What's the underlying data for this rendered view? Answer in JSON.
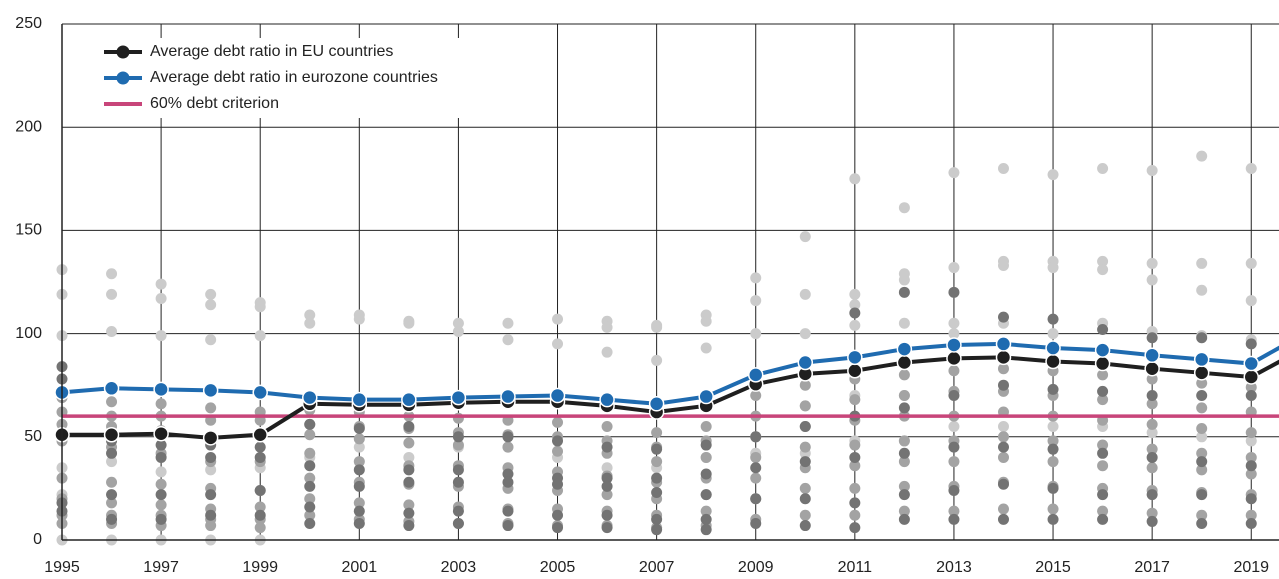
{
  "chart_data": {
    "type": "line",
    "x": [
      1995,
      1996,
      1997,
      1998,
      1999,
      2000,
      2001,
      2002,
      2003,
      2004,
      2005,
      2006,
      2007,
      2008,
      2009,
      2010,
      2011,
      2012,
      2013,
      2014,
      2015,
      2016,
      2017,
      2018,
      2019,
      2020
    ],
    "series": [
      {
        "name": "Average debt ratio in EU countries",
        "color": "#1f1f1f",
        "marker": true,
        "values": [
          51,
          51,
          51.5,
          49.5,
          51,
          66,
          65.5,
          65.5,
          66.5,
          67,
          67,
          65,
          62,
          65,
          75.5,
          80.5,
          82,
          86,
          88,
          88.5,
          86.5,
          85.5,
          83,
          81,
          79,
          92
        ]
      },
      {
        "name": "Average debt ratio in eurozone countries",
        "color": "#1f6bb0",
        "marker": true,
        "values": [
          71.5,
          73.5,
          73,
          72.5,
          71.5,
          69,
          68,
          68,
          69,
          69.5,
          70,
          68,
          66,
          69.5,
          80,
          86,
          88.5,
          92.5,
          94.5,
          95,
          93,
          92,
          89.5,
          87.5,
          85.5,
          99
        ]
      },
      {
        "name": "60% debt criterion",
        "color": "#c8457a",
        "marker": false,
        "values": [
          60,
          60,
          60,
          60,
          60,
          60,
          60,
          60,
          60,
          60,
          60,
          60,
          60,
          60,
          60,
          60,
          60,
          60,
          60,
          60,
          60,
          60,
          60,
          60,
          60,
          60
        ]
      }
    ],
    "country_dots": [
      {
        "color": "#cbcbcb",
        "x": [
          1995,
          1996,
          1997,
          1998,
          1999,
          2000,
          2001,
          2002,
          2003,
          2004,
          2005,
          2006,
          2007,
          2008,
          2009,
          2010,
          2011,
          2012,
          2013,
          2014,
          2015,
          2016,
          2017,
          2018,
          2019
        ],
        "values": [
          [
            131,
            119,
            99,
            35,
            22,
            0
          ],
          [
            129,
            119,
            101,
            38,
            0
          ],
          [
            124,
            117,
            99,
            33,
            0
          ],
          [
            119,
            114,
            97,
            34,
            0
          ],
          [
            115,
            113,
            99,
            35,
            0
          ],
          [
            109,
            105,
            40
          ],
          [
            109,
            107,
            45
          ],
          [
            106,
            105,
            40
          ],
          [
            105,
            101,
            45
          ],
          [
            105,
            97,
            45
          ],
          [
            107,
            95,
            40
          ],
          [
            106,
            103,
            91,
            35
          ],
          [
            104,
            103,
            87,
            35
          ],
          [
            109,
            106,
            93,
            40
          ],
          [
            127,
            116,
            100,
            42
          ],
          [
            147,
            119,
            100,
            65,
            42
          ],
          [
            175,
            119,
            114,
            104,
            70,
            48
          ],
          [
            161,
            129,
            126,
            105,
            70,
            48
          ],
          [
            178,
            132,
            105,
            100,
            55
          ],
          [
            180,
            135,
            133,
            105,
            55
          ],
          [
            177,
            135,
            132,
            100,
            55
          ],
          [
            180,
            135,
            131,
            105,
            55
          ],
          [
            179,
            134,
            126,
            101,
            52
          ],
          [
            186,
            134,
            121,
            99,
            50
          ],
          [
            180,
            134,
            116,
            97,
            48
          ]
        ]
      },
      {
        "color": "#a3a3a3",
        "x": [
          1995,
          1996,
          1997,
          1998,
          1999,
          2000,
          2001,
          2002,
          2003,
          2004,
          2005,
          2006,
          2007,
          2008,
          2009,
          2010,
          2011,
          2012,
          2013,
          2014,
          2015,
          2016,
          2017,
          2018,
          2019
        ],
        "values": [
          [
            69,
            62,
            56,
            48,
            30,
            20,
            12,
            8
          ],
          [
            67,
            60,
            55,
            45,
            28,
            18,
            12,
            8
          ],
          [
            66,
            60,
            53,
            42,
            27,
            17,
            12,
            7
          ],
          [
            64,
            58,
            50,
            38,
            25,
            15,
            10,
            7
          ],
          [
            62,
            58,
            50,
            38,
            24,
            16,
            10,
            6
          ],
          [
            63,
            56,
            51,
            42,
            30,
            20,
            12
          ],
          [
            62,
            55,
            49,
            38,
            28,
            18,
            10
          ],
          [
            60,
            54,
            47,
            36,
            27,
            17,
            9
          ],
          [
            59,
            52,
            46,
            36,
            26,
            16,
            8
          ],
          [
            58,
            51,
            45,
            35,
            25,
            15,
            8
          ],
          [
            57,
            50,
            43,
            33,
            24,
            15,
            7
          ],
          [
            55,
            48,
            42,
            31,
            22,
            14,
            7
          ],
          [
            52,
            45,
            38,
            28,
            20,
            12,
            6
          ],
          [
            55,
            48,
            40,
            30,
            22,
            14,
            7
          ],
          [
            70,
            60,
            50,
            40,
            30,
            20,
            10
          ],
          [
            75,
            65,
            55,
            45,
            35,
            25,
            12
          ],
          [
            78,
            68,
            58,
            46,
            36,
            25,
            12
          ],
          [
            80,
            70,
            60,
            48,
            38,
            26,
            14
          ],
          [
            82,
            72,
            60,
            48,
            38,
            26,
            14
          ],
          [
            83,
            72,
            62,
            50,
            40,
            28,
            15
          ],
          [
            82,
            70,
            60,
            48,
            38,
            26,
            15
          ],
          [
            80,
            68,
            58,
            46,
            36,
            25,
            14
          ],
          [
            78,
            66,
            56,
            44,
            35,
            24,
            13
          ],
          [
            76,
            64,
            54,
            42,
            34,
            23,
            12
          ],
          [
            74,
            62,
            52,
            40,
            32,
            22,
            12
          ]
        ]
      },
      {
        "color": "#737373",
        "x": [
          1995,
          1996,
          1997,
          1998,
          1999,
          2000,
          2001,
          2002,
          2003,
          2004,
          2005,
          2006,
          2007,
          2008,
          2009,
          2010,
          2011,
          2012,
          2013,
          2014,
          2015,
          2016,
          2017,
          2018,
          2019
        ],
        "values": [
          [
            84,
            78,
            50,
            18,
            14
          ],
          [
            48,
            42,
            22,
            10
          ],
          [
            46,
            40,
            22,
            10
          ],
          [
            46,
            40,
            22,
            12
          ],
          [
            45,
            40,
            24,
            12
          ],
          [
            56,
            36,
            26,
            16,
            8
          ],
          [
            54,
            34,
            26,
            14,
            8
          ],
          [
            55,
            34,
            28,
            13,
            7
          ],
          [
            50,
            34,
            28,
            14,
            8
          ],
          [
            50,
            32,
            28,
            14,
            7
          ],
          [
            48,
            30,
            27,
            12,
            6
          ],
          [
            45,
            30,
            26,
            12,
            6
          ],
          [
            44,
            30,
            23,
            10,
            5
          ],
          [
            46,
            32,
            22,
            10,
            5
          ],
          [
            50,
            35,
            20,
            8
          ],
          [
            55,
            38,
            20,
            7
          ],
          [
            110,
            60,
            40,
            18,
            6
          ],
          [
            120,
            64,
            42,
            22,
            10
          ],
          [
            120,
            70,
            45,
            24,
            10
          ],
          [
            108,
            75,
            45,
            27,
            10
          ],
          [
            107,
            73,
            44,
            25,
            10
          ],
          [
            102,
            72,
            42,
            22,
            10
          ],
          [
            98,
            70,
            40,
            22,
            9
          ],
          [
            98,
            70,
            38,
            22,
            8
          ],
          [
            95,
            70,
            36,
            20,
            8
          ]
        ]
      }
    ],
    "xlim": [
      1995,
      2019.56
    ],
    "xticks": [
      1995,
      1997,
      1999,
      2001,
      2003,
      2005,
      2007,
      2009,
      2011,
      2013,
      2015,
      2017,
      2019
    ],
    "ylim": [
      0,
      250
    ],
    "yticks": [
      0,
      50,
      100,
      150,
      200,
      250
    ],
    "grid": true,
    "legend": "upper left"
  }
}
